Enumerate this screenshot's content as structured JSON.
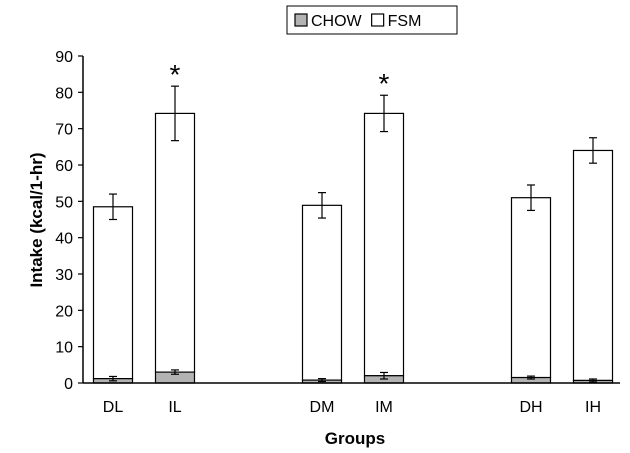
{
  "chart_data": {
    "type": "bar",
    "stacked": true,
    "title": "",
    "xlabel": "Groups",
    "ylabel": "Intake (kcal/1-hr)",
    "ylim": [
      0,
      90
    ],
    "yticks": [
      "0",
      "10",
      "20",
      "30",
      "40",
      "50",
      "60",
      "70",
      "80",
      "90"
    ],
    "categories": [
      "DL",
      "IL",
      "DM",
      "IM",
      "DH",
      "IH"
    ],
    "series": [
      {
        "name": "CHOW",
        "color": "#b3b3b3",
        "values": [
          1.2,
          3.0,
          0.8,
          2.0,
          1.5,
          0.7
        ],
        "errors": [
          0.6,
          0.6,
          0.4,
          0.9,
          0.4,
          0.4
        ]
      },
      {
        "name": "FSM",
        "color": "#ffffff",
        "values": [
          47.3,
          71.2,
          48.1,
          72.2,
          49.5,
          63.3
        ],
        "errors": [
          3.5,
          7.5,
          3.5,
          5.0,
          3.5,
          3.5
        ]
      }
    ],
    "significance_marks": [
      "",
      "*",
      "",
      "*",
      "",
      ""
    ],
    "legend_position": "top",
    "grid": false
  }
}
